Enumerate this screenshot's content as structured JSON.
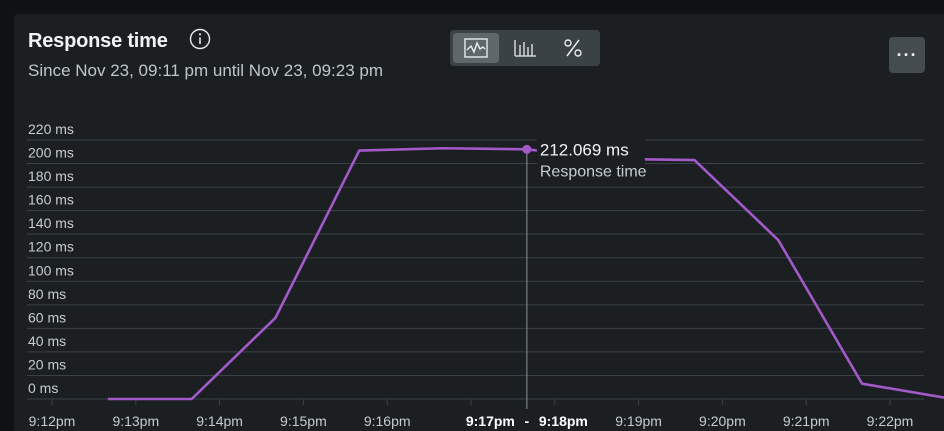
{
  "header": {
    "title": "Response time",
    "subtitle": "Since Nov 23, 09:11 pm until Nov 23, 09:23 pm",
    "more_label": "···"
  },
  "toolbar": {
    "views": [
      {
        "name": "line-chart-icon",
        "active": true
      },
      {
        "name": "bar-chart-icon",
        "active": false
      },
      {
        "name": "percent-icon",
        "active": false
      }
    ]
  },
  "colors": {
    "line": "#a259c9",
    "grid": "#3a4145",
    "background": "#1b1f21"
  },
  "chart_data": {
    "type": "line",
    "ylim": [
      0,
      220
    ],
    "yticks": [
      0,
      20,
      40,
      60,
      80,
      100,
      120,
      140,
      160,
      180,
      200,
      220
    ],
    "ytick_labels": [
      "0 ms",
      "20 ms",
      "40 ms",
      "60 ms",
      "80 ms",
      "100 ms",
      "120 ms",
      "140 ms",
      "160 ms",
      "180 ms",
      "200 ms",
      "220 ms"
    ],
    "xticks": [
      "9:12pm",
      "9:13pm",
      "9:14pm",
      "9:15pm",
      "9:16pm",
      "9:17pm",
      "9:18pm",
      "9:19pm",
      "9:20pm",
      "9:21pm",
      "9:22pm"
    ],
    "series": [
      {
        "name": "Response time",
        "points": [
          {
            "t": "9:12:40pm",
            "y": 0
          },
          {
            "t": "9:13:40pm",
            "y": 0
          },
          {
            "t": "9:14:40pm",
            "y": 69
          },
          {
            "t": "9:15:40pm",
            "y": 211
          },
          {
            "t": "9:16:40pm",
            "y": 213
          },
          {
            "t": "9:17:40pm",
            "y": 212.069
          },
          {
            "t": "9:18:40pm",
            "y": 204
          },
          {
            "t": "9:19:40pm",
            "y": 203
          },
          {
            "t": "9:20:40pm",
            "y": 135
          },
          {
            "t": "9:21:40pm",
            "y": 13
          },
          {
            "t": "9:22:40pm",
            "y": 1
          }
        ]
      }
    ],
    "tooltip": {
      "value": "212.069 ms",
      "label": "Response time",
      "range_start": "9:17pm",
      "range_separator": "-",
      "range_end": "9:18pm"
    },
    "grid": true
  }
}
